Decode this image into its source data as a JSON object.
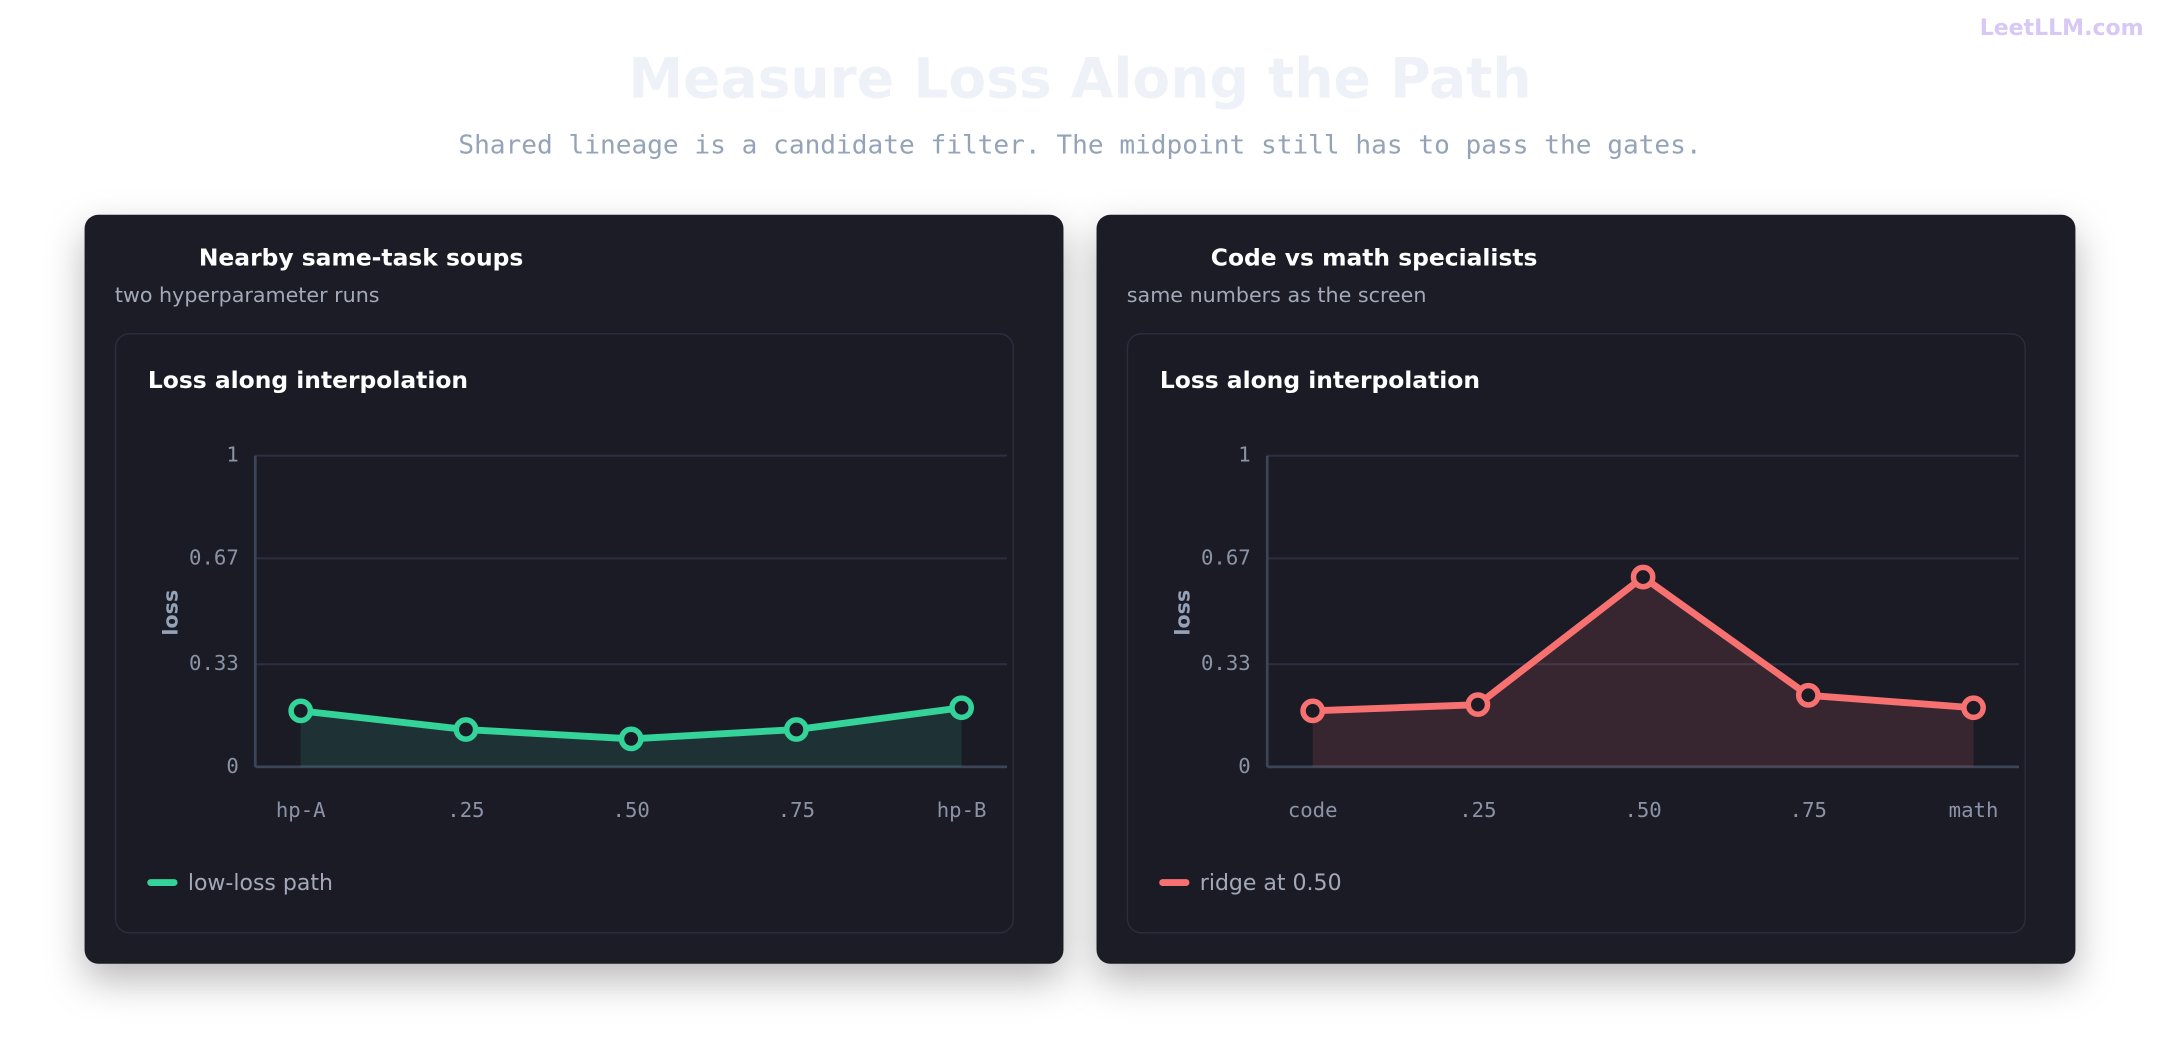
{
  "brand": "LeetLLM.com",
  "title": "Measure Loss Along the Path",
  "subtitle": "Shared lineage is a candidate filter. The midpoint still has to pass the gates.",
  "chart_data": [
    {
      "type": "line",
      "card_title": "Nearby same-task soups",
      "card_subtitle": "two hyperparameter runs",
      "title": "Loss along interpolation",
      "ylabel": "loss",
      "categories": [
        "hp-A",
        ".25",
        ".50",
        ".75",
        "hp-B"
      ],
      "series": [
        {
          "name": "low-loss path",
          "color": "#34d399",
          "values": [
            0.18,
            0.12,
            0.09,
            0.12,
            0.19
          ]
        }
      ],
      "ylim": [
        0,
        1
      ],
      "yticks": [
        0,
        0.33,
        0.67,
        1
      ],
      "grid": true
    },
    {
      "type": "line",
      "card_title": "Code vs math specialists",
      "card_subtitle": "same numbers as the screen",
      "title": "Loss along interpolation",
      "ylabel": "loss",
      "categories": [
        "code",
        ".25",
        ".50",
        ".75",
        "math"
      ],
      "series": [
        {
          "name": "ridge at 0.50",
          "color": "#f87171",
          "values": [
            0.18,
            0.2,
            0.61,
            0.23,
            0.19
          ]
        }
      ],
      "ylim": [
        0,
        1
      ],
      "yticks": [
        0,
        0.33,
        0.67,
        1
      ],
      "grid": true
    }
  ]
}
